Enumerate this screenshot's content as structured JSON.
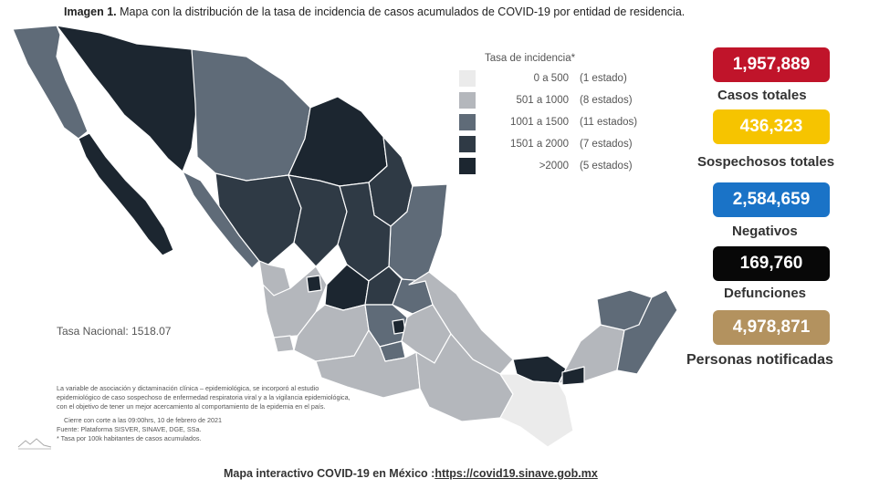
{
  "header": {
    "title_bold": "Imagen 1.",
    "title_rest": " Mapa con la distribución de la tasa de incidencia de casos acumulados de COVID-19 por entidad de residencia."
  },
  "legend": {
    "title": "Tasa de incidencia*",
    "items": [
      {
        "range": "0 a   500",
        "count": "(1 estado)",
        "color": "#ebebeb"
      },
      {
        "range": "501 a  1000",
        "count": "(8 estados)",
        "color": "#b4b7bc"
      },
      {
        "range": "1001 a  1500",
        "count": "(11 estados)",
        "color": "#5f6b78"
      },
      {
        "range": "1501 a  2000",
        "count": "(7 estados)",
        "color": "#2f3a45"
      },
      {
        "range": ">2000",
        "count": "(5 estados)",
        "color": "#1c2630"
      }
    ]
  },
  "tasa_nacional": "Tasa Nacional: 1518.07",
  "notes": [
    "La variable de asociación y dictaminación clínica – epidemiológica, se incorporó al estudio",
    "epidemiológico de caso sospechoso de enfermedad respiratoria viral y a la vigilancia epidemiológica,",
    "con el objetivo de tener un mejor acercamiento al comportamiento de la epidemia en el país.",
    "",
    "Cierre con corte a las 09:00hrs, 10 de febrero de 2021",
    "Fuente: Plataforma SISVER, SINAVE, DGE, SSa.",
    "* Tasa por 100k habitantes de casos acumulados."
  ],
  "stats": [
    {
      "value": "1,957,889",
      "label": "Casos totales",
      "color": "#c0142a"
    },
    {
      "value": "436,323",
      "label": "Sospechosos totales",
      "color": "#f6c400"
    },
    {
      "value": "2,584,659",
      "label": "Negativos",
      "color": "#1a73c7"
    },
    {
      "value": "169,760",
      "label": "Defunciones",
      "color": "#080808"
    },
    {
      "value": "4,978,871",
      "label": "Personas notificadas",
      "color": "#b3925f"
    }
  ],
  "footer": {
    "text": "Mapa interactivo COVID-19 en México :",
    "link": "https://covid19.sinave.gob.mx"
  },
  "colors": {
    "level1": "#ebebeb",
    "level2": "#b4b7bc",
    "level3": "#5f6b78",
    "level4": "#2f3a45",
    "level5": "#1c2630"
  }
}
